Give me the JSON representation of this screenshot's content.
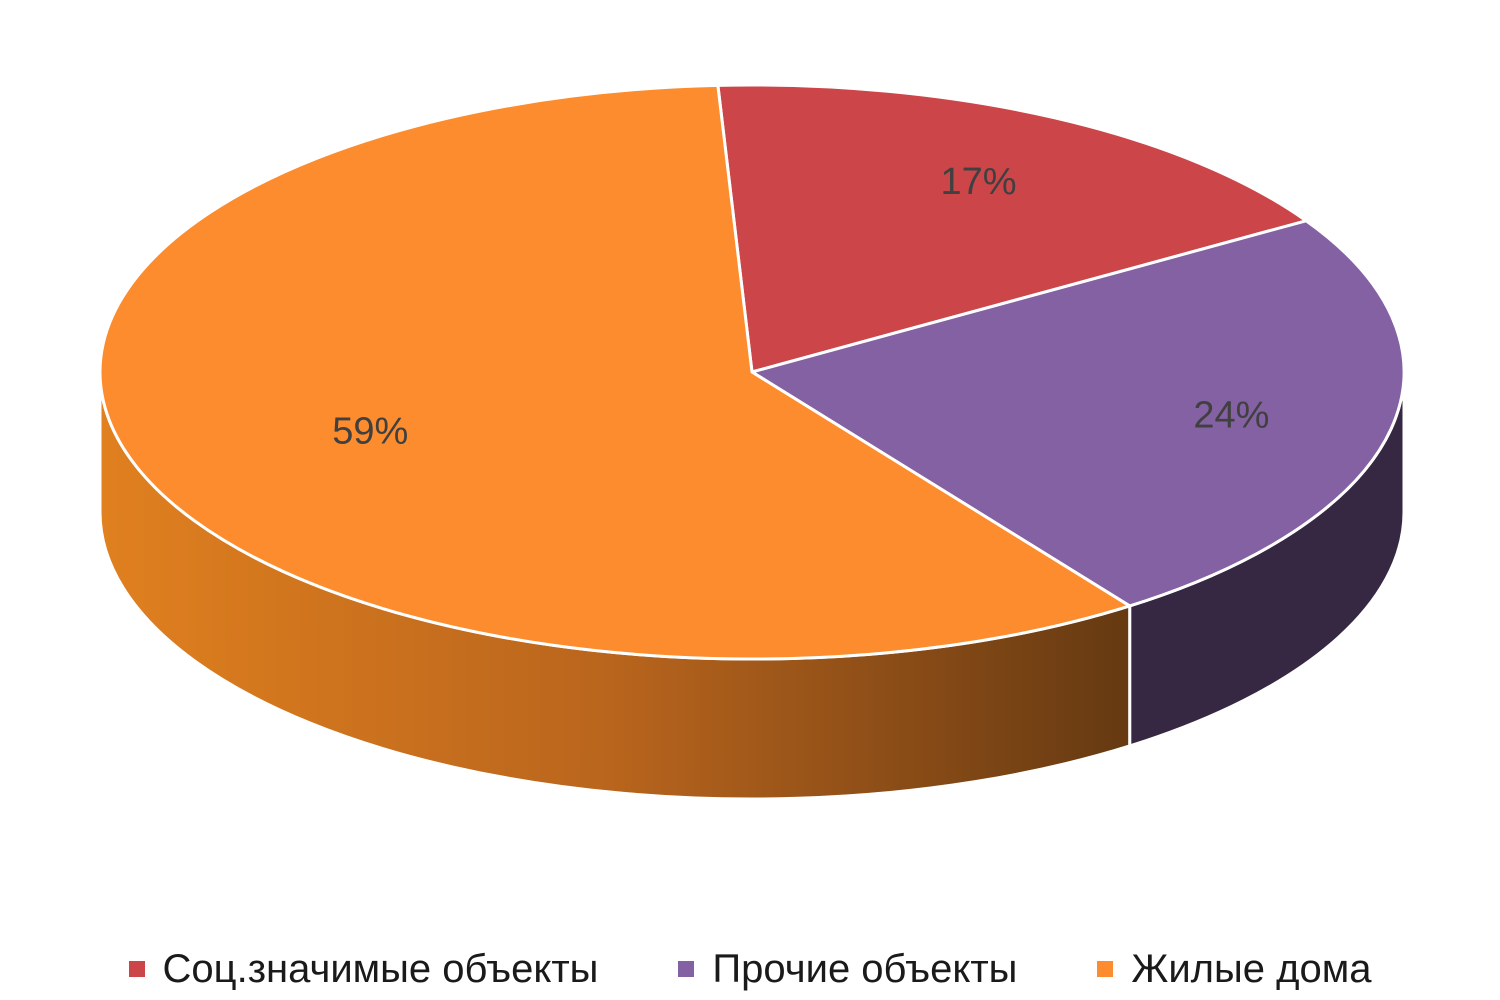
{
  "chart_data": {
    "type": "pie",
    "style": "3d",
    "title": "",
    "legend_position": "bottom",
    "slices": [
      {
        "label": "Соц.значимые объекты",
        "value": 17,
        "display": "17%",
        "color": "#cb4549",
        "side_color": "#7a2a2c"
      },
      {
        "label": "Прочие объекты",
        "value": 24,
        "display": "24%",
        "color": "#8461a2",
        "side_color": "#362842"
      },
      {
        "label": "Жилые дома",
        "value": 59,
        "display": "59%",
        "color": "#fc8c2d",
        "side_color": "#c86a1f"
      }
    ]
  }
}
